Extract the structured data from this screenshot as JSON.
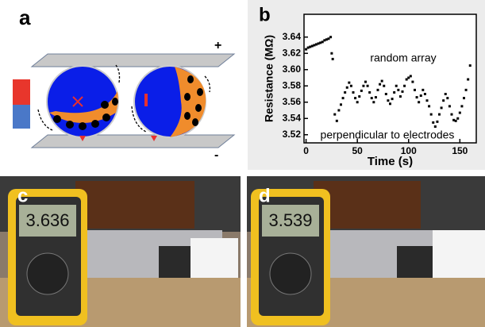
{
  "panels": {
    "a": {
      "label": "a",
      "plus": "+",
      "minus": "-"
    },
    "b": {
      "label": "b"
    },
    "c": {
      "label": "c",
      "reading": "3.636"
    },
    "d": {
      "label": "d",
      "reading": "3.539"
    }
  },
  "chart_data": {
    "type": "scatter",
    "x_label": "Time (s)",
    "y_label": "Resistance (MΩ)",
    "annotations": [
      "random array",
      "perpendicular to electrodes"
    ],
    "color": "#000000",
    "x": [
      0,
      2,
      4,
      6,
      8,
      10,
      12,
      14,
      16,
      18,
      20,
      22,
      24,
      25,
      26,
      28,
      30,
      32,
      34,
      36,
      38,
      40,
      42,
      44,
      46,
      48,
      50,
      52,
      54,
      56,
      58,
      60,
      62,
      64,
      66,
      68,
      70,
      72,
      74,
      76,
      78,
      80,
      82,
      84,
      86,
      88,
      90,
      92,
      94,
      96,
      98,
      100,
      102,
      104,
      106,
      108,
      110,
      112,
      114,
      116,
      118,
      120,
      122,
      124,
      126,
      128,
      130,
      132,
      134,
      136,
      138,
      140,
      142,
      144,
      146,
      148,
      150,
      152,
      154,
      156,
      158,
      160
    ],
    "y": [
      3.625,
      3.627,
      3.628,
      3.629,
      3.63,
      3.631,
      3.632,
      3.633,
      3.634,
      3.636,
      3.637,
      3.638,
      3.64,
      3.62,
      3.613,
      3.545,
      3.537,
      3.55,
      3.557,
      3.565,
      3.572,
      3.578,
      3.584,
      3.58,
      3.572,
      3.565,
      3.56,
      3.567,
      3.574,
      3.58,
      3.585,
      3.58,
      3.572,
      3.565,
      3.56,
      3.566,
      3.575,
      3.582,
      3.586,
      3.58,
      3.57,
      3.562,
      3.558,
      3.564,
      3.572,
      3.58,
      3.575,
      3.567,
      3.573,
      3.58,
      3.588,
      3.59,
      3.592,
      3.585,
      3.575,
      3.566,
      3.56,
      3.568,
      3.575,
      3.57,
      3.562,
      3.555,
      3.545,
      3.535,
      3.53,
      3.536,
      3.545,
      3.553,
      3.562,
      3.57,
      3.565,
      3.555,
      3.545,
      3.538,
      3.537,
      3.54,
      3.547,
      3.555,
      3.565,
      3.575,
      3.588,
      3.605
    ],
    "xlim": [
      -2,
      166
    ],
    "ylim": [
      3.51,
      3.668
    ],
    "xticks": [
      0,
      50,
      100,
      150
    ],
    "yticks": [
      3.52,
      3.54,
      3.56,
      3.58,
      {
        "value": 3.6,
        "label": "3.60"
      },
      3.62,
      3.64
    ]
  }
}
